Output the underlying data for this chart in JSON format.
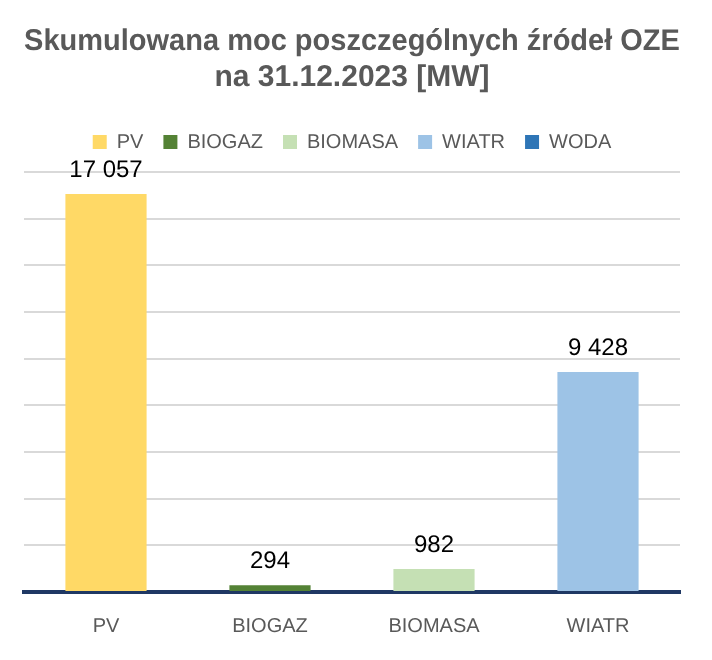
{
  "chart_data": {
    "type": "bar",
    "title": [
      "Skumulowana moc poszczególnych źródeł OZE",
      "na 31.12.2023 [MW]"
    ],
    "categories": [
      "PV",
      "BIOGAZ",
      "BIOMASA",
      "WIATR"
    ],
    "series": [
      {
        "name": "PV",
        "color": "#ffd966",
        "values": [
          17057,
          null,
          null,
          null
        ]
      },
      {
        "name": "BIOGAZ",
        "color": "#548235",
        "values": [
          null,
          294,
          null,
          null
        ]
      },
      {
        "name": "BIOMASA",
        "color": "#c5e0b4",
        "values": [
          null,
          null,
          982,
          null
        ]
      },
      {
        "name": "WIATR",
        "color": "#9dc3e6",
        "values": [
          null,
          null,
          null,
          9428
        ]
      },
      {
        "name": "WODA",
        "color": "#2e75b6",
        "values": [
          null,
          null,
          null,
          null
        ]
      }
    ],
    "data_labels": true,
    "grid": "y",
    "legend": "top",
    "tick_labels": "x"
  }
}
